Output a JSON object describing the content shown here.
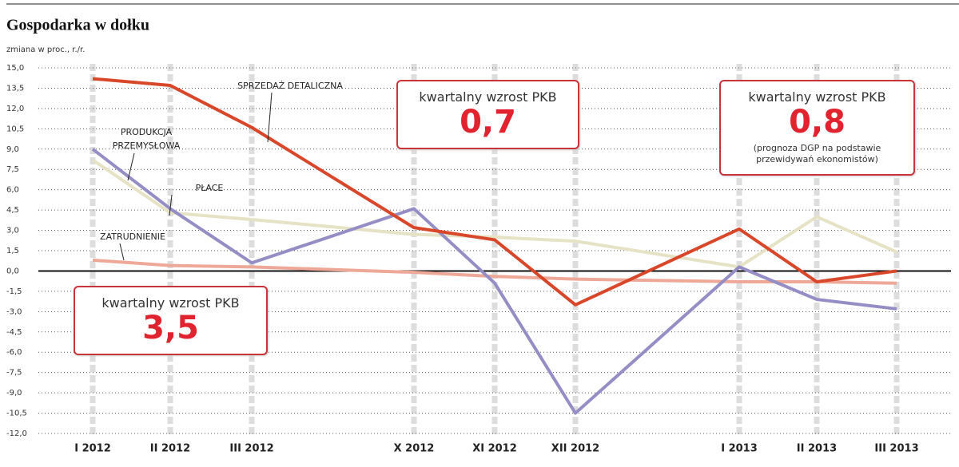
{
  "chart_data": {
    "type": "line",
    "title": "Gospodarka w dołku",
    "subtitle": "zmiana w proc., r./r.",
    "categories": [
      "I 2012",
      "II 2012",
      "III 2012",
      "X 2012",
      "XI 2012",
      "XII 2012",
      "I 2013",
      "II 2013",
      "III 2013"
    ],
    "series": [
      {
        "name": "SPRZEDAŻ DETALICZNA",
        "color": "#d9472b",
        "values": [
          14.2,
          13.7,
          10.6,
          3.2,
          2.3,
          -2.5,
          3.1,
          -0.8,
          0.0
        ]
      },
      {
        "name": "PRODUKCJA PRZEMYSŁOWA",
        "color": "#958ec6",
        "values": [
          9.0,
          4.6,
          0.6,
          4.6,
          -0.9,
          -10.5,
          0.3,
          -2.1,
          -2.8
        ]
      },
      {
        "name": "PŁACE",
        "color": "#e6e2c6",
        "values": [
          8.2,
          4.3,
          3.8,
          2.7,
          2.5,
          2.2,
          0.3,
          4.0,
          1.4
        ]
      },
      {
        "name": "ZATRUDNIENIE",
        "color": "#eda898",
        "values": [
          0.8,
          0.4,
          0.3,
          -0.1,
          -0.4,
          -0.6,
          -0.8,
          -0.8,
          -0.9
        ]
      }
    ],
    "ylim": [
      -12,
      15
    ],
    "yticks": [
      {
        "value": 15,
        "label": "15,0"
      },
      {
        "value": 13.5,
        "label": "13,5"
      },
      {
        "value": 12,
        "label": "12,0"
      },
      {
        "value": 10.5,
        "label": "10,5"
      },
      {
        "value": 9,
        "label": "9,0"
      },
      {
        "value": 7.5,
        "label": "7,5"
      },
      {
        "value": 6,
        "label": "6,0"
      },
      {
        "value": 4.5,
        "label": "4,5"
      },
      {
        "value": 3,
        "label": "3,0"
      },
      {
        "value": 1.5,
        "label": "1,5"
      },
      {
        "value": 0,
        "label": "0,0"
      },
      {
        "value": -1.5,
        "label": "-1,5"
      },
      {
        "value": -3,
        "label": "-3,0"
      },
      {
        "value": -4.5,
        "label": "-4,5"
      },
      {
        "value": -6,
        "label": "-6,0"
      },
      {
        "value": -7.5,
        "label": "-7,5"
      },
      {
        "value": -9,
        "label": "-9,0"
      },
      {
        "value": -10.5,
        "label": "-10,5"
      },
      {
        "value": -12,
        "label": "-12,0"
      }
    ],
    "grid": true,
    "annotations": [
      {
        "title": "kwartalny wzrost PKB",
        "value": "3,5"
      },
      {
        "title": "kwartalny wzrost PKB",
        "value": "0,7"
      },
      {
        "title": "kwartalny wzrost PKB",
        "value": "0,8",
        "note": "(prognoza DGP na podstawie przewidywań ekonomistów)"
      }
    ]
  }
}
